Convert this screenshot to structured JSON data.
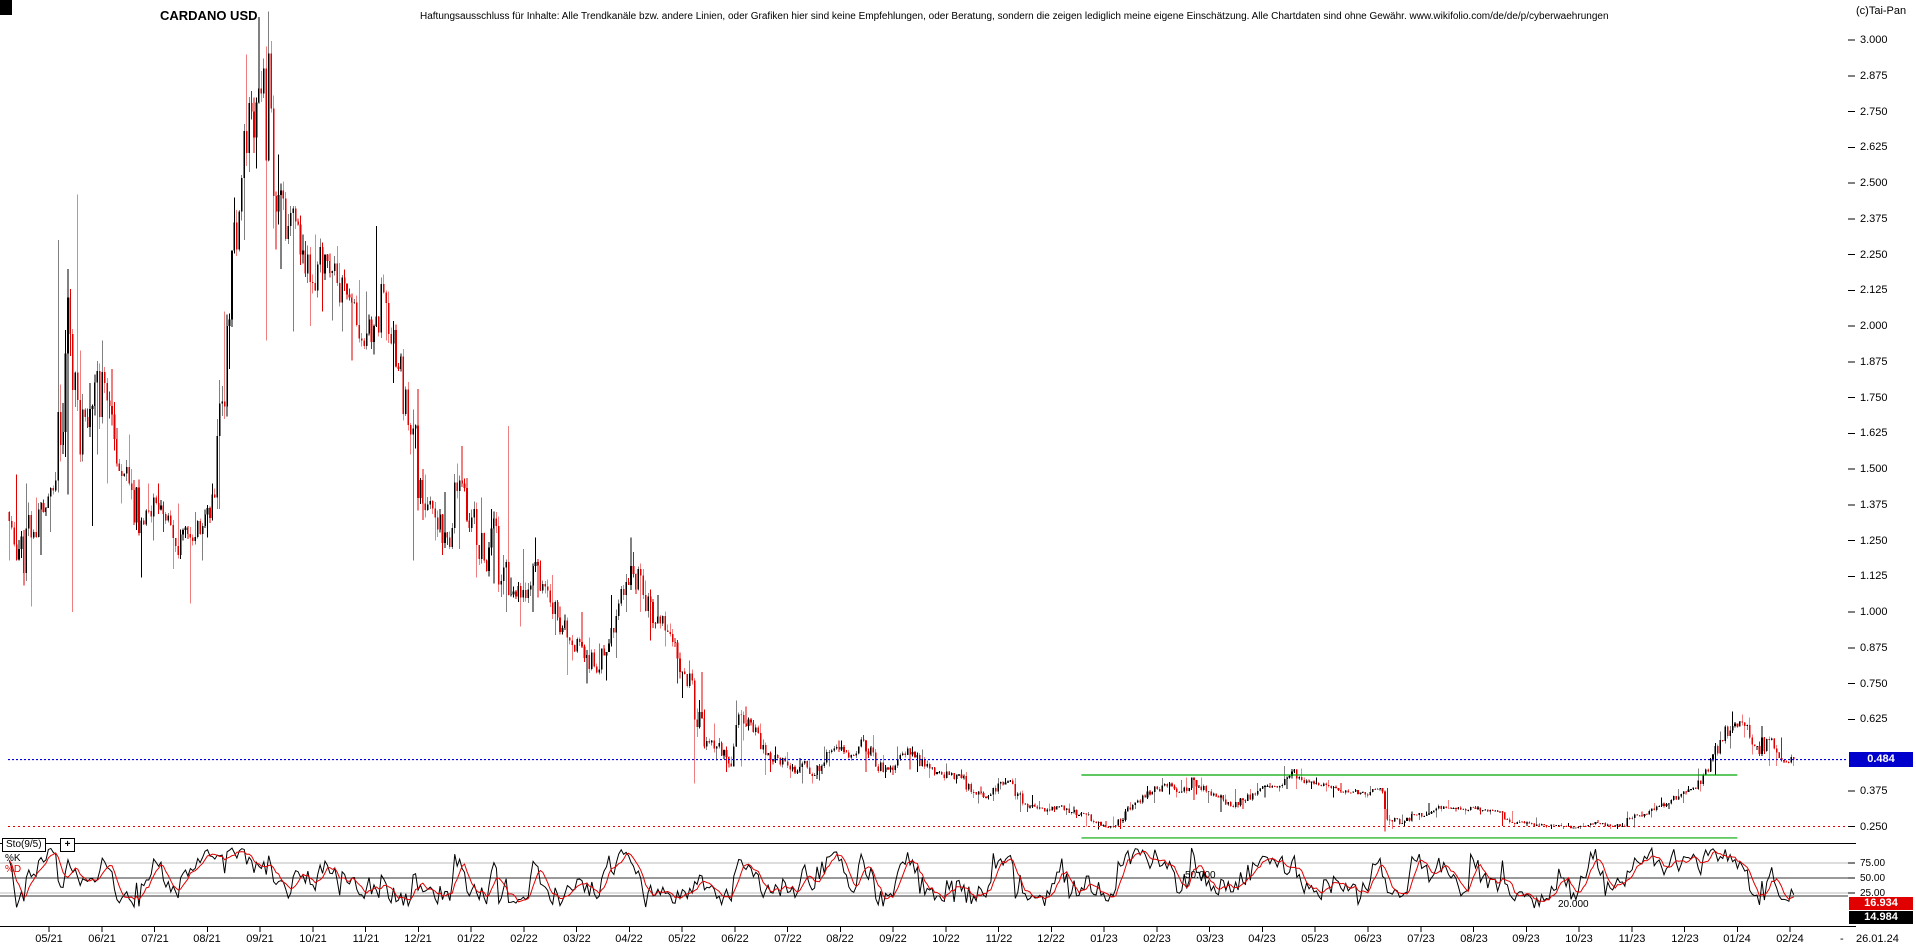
{
  "header": {
    "title": "CARDANO USD",
    "disclaimer": "Haftungsausschluss für Inhalte: Alle Trendkanäle bzw. andere Linien, oder Grafiken hier sind keine Empfehlungen, oder Beratung, sondern die zeigen lediglich meine eigene Einschätzung. Alle Chartdaten sind ohne Gewähr.  www.wikifolio.com/de/de/p/cyberwaehrungen",
    "copyright": "(c)Tai-Pan"
  },
  "price_axis": {
    "labels": [
      "3.000",
      "2.875",
      "2.750",
      "2.625",
      "2.500",
      "2.375",
      "2.250",
      "2.125",
      "2.000",
      "1.875",
      "1.750",
      "1.625",
      "1.500",
      "1.375",
      "1.250",
      "1.125",
      "1.000",
      "0.875",
      "0.750",
      "0.625",
      "0.375",
      "0.250"
    ],
    "current_price": "0.484"
  },
  "x_axis": {
    "labels": [
      "05/21",
      "06/21",
      "07/21",
      "08/21",
      "09/21",
      "10/21",
      "11/21",
      "12/21",
      "01/22",
      "02/22",
      "03/22",
      "04/22",
      "05/22",
      "06/22",
      "07/22",
      "08/22",
      "09/22",
      "10/22",
      "11/22",
      "12/22",
      "01/23",
      "02/23",
      "03/23",
      "04/23",
      "05/23",
      "06/23",
      "07/23",
      "08/23",
      "09/23",
      "10/23",
      "11/23",
      "12/23",
      "01/24",
      "02/24"
    ],
    "separator": "-",
    "end_date": "26.01.24"
  },
  "indicator": {
    "name": "Sto(9/5)",
    "add_button": "+",
    "k_label": "%K",
    "d_label": "%D",
    "level_labels": [
      "75.00",
      "50.00",
      "25.00"
    ],
    "levels": [
      75,
      50,
      25
    ],
    "mid_line_label": "50.000",
    "low_line_label": "20.000",
    "mid_line_value": 50,
    "low_line_value": 20,
    "d_value": "16.934",
    "k_value": "14.984"
  },
  "colors": {
    "up": "#000000",
    "down": "#e00000",
    "current_price_line": "#0000e6",
    "current_price_box": "#0000cd",
    "alarm_line": "#e00000",
    "support_line": "#00a800",
    "k_line": "#000000",
    "d_line": "#e00000",
    "level_line_light": "#bbbbbb",
    "level_line_dark": "#333333"
  },
  "chart_data": {
    "type": "candlestick",
    "title": "CARDANO USD",
    "ylim": [
      0.18,
      3.05
    ],
    "y_ticks": [
      3.0,
      2.875,
      2.75,
      2.625,
      2.5,
      2.375,
      2.25,
      2.125,
      2.0,
      1.875,
      1.75,
      1.625,
      1.5,
      1.375,
      1.25,
      1.125,
      1.0,
      0.875,
      0.75,
      0.625,
      0.375,
      0.25
    ],
    "months": [
      "05/21",
      "06/21",
      "07/21",
      "08/21",
      "09/21",
      "10/21",
      "11/21",
      "12/21",
      "01/22",
      "02/22",
      "03/22",
      "04/22",
      "05/22",
      "06/22",
      "07/22",
      "08/22",
      "09/22",
      "10/22",
      "11/22",
      "12/22",
      "01/23",
      "02/23",
      "03/23",
      "04/23",
      "05/23",
      "06/23",
      "07/23",
      "08/23",
      "09/23",
      "10/23",
      "11/23",
      "12/23",
      "01/24",
      "02/24"
    ],
    "current_price": 0.484,
    "lines": {
      "blue_dashed_price": 0.484,
      "red_dashed_price": 0.25,
      "green": [
        {
          "price": 0.43,
          "from_month": "12/22",
          "to_month": "01/24"
        },
        {
          "price": 0.21,
          "from_month": "12/22",
          "to_month": "01/24"
        }
      ]
    },
    "stochastic": {
      "period": 9,
      "smooth": 5,
      "last_k": 14.984,
      "last_d": 16.934
    },
    "weekly_ohlc": [
      [
        1.35,
        1.48,
        1.18,
        1.22
      ],
      [
        1.22,
        1.45,
        1.02,
        1.26
      ],
      [
        1.26,
        1.4,
        1.2,
        1.35
      ],
      [
        1.35,
        1.49,
        1.28,
        1.46
      ],
      [
        1.46,
        2.3,
        1.41,
        2.1
      ],
      [
        2.1,
        2.46,
        1.0,
        1.55
      ],
      [
        1.55,
        1.8,
        1.3,
        1.72
      ],
      [
        1.72,
        1.95,
        1.55,
        1.8
      ],
      [
        1.8,
        1.85,
        1.45,
        1.52
      ],
      [
        1.52,
        1.62,
        1.38,
        1.45
      ],
      [
        1.45,
        1.5,
        1.12,
        1.32
      ],
      [
        1.32,
        1.45,
        1.25,
        1.4
      ],
      [
        1.4,
        1.45,
        1.28,
        1.32
      ],
      [
        1.32,
        1.38,
        1.15,
        1.2
      ],
      [
        1.2,
        1.3,
        1.03,
        1.26
      ],
      [
        1.26,
        1.35,
        1.18,
        1.3
      ],
      [
        1.3,
        1.45,
        1.26,
        1.4
      ],
      [
        1.4,
        2.05,
        1.36,
        2.0
      ],
      [
        2.0,
        2.45,
        1.85,
        2.4
      ],
      [
        2.4,
        2.95,
        2.3,
        2.75
      ],
      [
        2.75,
        3.08,
        2.55,
        2.9
      ],
      [
        2.9,
        3.1,
        1.95,
        2.4
      ],
      [
        2.4,
        2.6,
        2.2,
        2.35
      ],
      [
        2.35,
        2.42,
        1.98,
        2.25
      ],
      [
        2.25,
        2.32,
        2.0,
        2.15
      ],
      [
        2.15,
        2.32,
        2.05,
        2.25
      ],
      [
        2.25,
        2.28,
        2.02,
        2.15
      ],
      [
        2.15,
        2.22,
        1.98,
        2.1
      ],
      [
        2.1,
        2.16,
        1.88,
        1.95
      ],
      [
        1.95,
        2.12,
        1.9,
        2.0
      ],
      [
        2.0,
        2.35,
        1.95,
        2.08
      ],
      [
        2.08,
        2.12,
        1.8,
        1.85
      ],
      [
        1.85,
        1.92,
        1.55,
        1.62
      ],
      [
        1.62,
        1.78,
        1.18,
        1.38
      ],
      [
        1.38,
        1.48,
        1.25,
        1.33
      ],
      [
        1.33,
        1.42,
        1.2,
        1.26
      ],
      [
        1.26,
        1.52,
        1.22,
        1.46
      ],
      [
        1.46,
        1.58,
        1.28,
        1.33
      ],
      [
        1.33,
        1.4,
        1.12,
        1.18
      ],
      [
        1.18,
        1.36,
        1.1,
        1.3
      ],
      [
        1.3,
        1.65,
        1.0,
        1.06
      ],
      [
        1.06,
        1.12,
        0.95,
        1.05
      ],
      [
        1.05,
        1.22,
        1.0,
        1.16
      ],
      [
        1.16,
        1.26,
        1.05,
        1.09
      ],
      [
        1.09,
        1.13,
        0.92,
        0.98
      ],
      [
        0.98,
        1.02,
        0.78,
        0.9
      ],
      [
        0.9,
        1.0,
        0.83,
        0.88
      ],
      [
        0.88,
        0.91,
        0.75,
        0.81
      ],
      [
        0.81,
        0.89,
        0.76,
        0.86
      ],
      [
        0.86,
        1.06,
        0.84,
        1.03
      ],
      [
        1.03,
        1.26,
        1.0,
        1.16
      ],
      [
        1.16,
        1.21,
        1.0,
        1.06
      ],
      [
        1.06,
        1.11,
        0.9,
        0.96
      ],
      [
        0.96,
        1.06,
        0.88,
        0.93
      ],
      [
        0.93,
        0.96,
        0.75,
        0.79
      ],
      [
        0.79,
        0.83,
        0.7,
        0.76
      ],
      [
        0.76,
        0.79,
        0.4,
        0.53
      ],
      [
        0.53,
        0.61,
        0.48,
        0.53
      ],
      [
        0.53,
        0.56,
        0.44,
        0.47
      ],
      [
        0.47,
        0.69,
        0.46,
        0.64
      ],
      [
        0.64,
        0.67,
        0.55,
        0.58
      ],
      [
        0.58,
        0.61,
        0.43,
        0.5
      ],
      [
        0.5,
        0.53,
        0.44,
        0.49
      ],
      [
        0.49,
        0.51,
        0.42,
        0.45
      ],
      [
        0.45,
        0.49,
        0.4,
        0.47
      ],
      [
        0.47,
        0.48,
        0.4,
        0.43
      ],
      [
        0.43,
        0.53,
        0.41,
        0.51
      ],
      [
        0.51,
        0.55,
        0.46,
        0.52
      ],
      [
        0.52,
        0.55,
        0.48,
        0.5
      ],
      [
        0.5,
        0.57,
        0.49,
        0.55
      ],
      [
        0.55,
        0.57,
        0.44,
        0.46
      ],
      [
        0.46,
        0.5,
        0.42,
        0.45
      ],
      [
        0.45,
        0.53,
        0.43,
        0.5
      ],
      [
        0.5,
        0.53,
        0.45,
        0.51
      ],
      [
        0.51,
        0.52,
        0.44,
        0.46
      ],
      [
        0.46,
        0.48,
        0.42,
        0.44
      ],
      [
        0.44,
        0.47,
        0.41,
        0.43
      ],
      [
        0.43,
        0.45,
        0.4,
        0.42
      ],
      [
        0.42,
        0.44,
        0.35,
        0.37
      ],
      [
        0.37,
        0.39,
        0.33,
        0.35
      ],
      [
        0.35,
        0.42,
        0.34,
        0.4
      ],
      [
        0.4,
        0.42,
        0.38,
        0.41
      ],
      [
        0.41,
        0.42,
        0.3,
        0.33
      ],
      [
        0.33,
        0.36,
        0.3,
        0.32
      ],
      [
        0.32,
        0.34,
        0.29,
        0.31
      ],
      [
        0.31,
        0.33,
        0.3,
        0.32
      ],
      [
        0.32,
        0.33,
        0.29,
        0.3
      ],
      [
        0.3,
        0.32,
        0.28,
        0.295
      ],
      [
        0.295,
        0.3,
        0.25,
        0.263
      ],
      [
        0.263,
        0.27,
        0.24,
        0.247
      ],
      [
        0.247,
        0.285,
        0.242,
        0.272
      ],
      [
        0.272,
        0.335,
        0.262,
        0.325
      ],
      [
        0.325,
        0.362,
        0.312,
        0.352
      ],
      [
        0.352,
        0.392,
        0.332,
        0.382
      ],
      [
        0.382,
        0.42,
        0.362,
        0.4
      ],
      [
        0.4,
        0.412,
        0.352,
        0.372
      ],
      [
        0.372,
        0.422,
        0.342,
        0.412
      ],
      [
        0.412,
        0.422,
        0.362,
        0.372
      ],
      [
        0.372,
        0.382,
        0.332,
        0.352
      ],
      [
        0.352,
        0.362,
        0.3,
        0.322
      ],
      [
        0.322,
        0.382,
        0.312,
        0.342
      ],
      [
        0.342,
        0.382,
        0.332,
        0.362
      ],
      [
        0.362,
        0.402,
        0.352,
        0.392
      ],
      [
        0.392,
        0.402,
        0.372,
        0.392
      ],
      [
        0.392,
        0.462,
        0.382,
        0.442
      ],
      [
        0.442,
        0.452,
        0.382,
        0.402
      ],
      [
        0.402,
        0.422,
        0.382,
        0.402
      ],
      [
        0.402,
        0.412,
        0.372,
        0.392
      ],
      [
        0.392,
        0.402,
        0.352,
        0.372
      ],
      [
        0.372,
        0.382,
        0.362,
        0.372
      ],
      [
        0.372,
        0.382,
        0.352,
        0.362
      ],
      [
        0.362,
        0.392,
        0.352,
        0.382
      ],
      [
        0.382,
        0.385,
        0.232,
        0.272
      ],
      [
        0.272,
        0.292,
        0.242,
        0.262
      ],
      [
        0.262,
        0.302,
        0.252,
        0.292
      ],
      [
        0.292,
        0.302,
        0.272,
        0.292
      ],
      [
        0.292,
        0.332,
        0.282,
        0.322
      ],
      [
        0.322,
        0.342,
        0.302,
        0.312
      ],
      [
        0.312,
        0.322,
        0.302,
        0.312
      ],
      [
        0.312,
        0.322,
        0.292,
        0.312
      ],
      [
        0.312,
        0.322,
        0.292,
        0.302
      ],
      [
        0.302,
        0.312,
        0.292,
        0.302
      ],
      [
        0.302,
        0.305,
        0.252,
        0.262
      ],
      [
        0.262,
        0.272,
        0.252,
        0.262
      ],
      [
        0.262,
        0.282,
        0.252,
        0.257
      ],
      [
        0.257,
        0.262,
        0.247,
        0.252
      ],
      [
        0.252,
        0.262,
        0.242,
        0.252
      ],
      [
        0.252,
        0.262,
        0.242,
        0.247
      ],
      [
        0.247,
        0.262,
        0.242,
        0.252
      ],
      [
        0.252,
        0.272,
        0.247,
        0.262
      ],
      [
        0.262,
        0.265,
        0.242,
        0.252
      ],
      [
        0.252,
        0.262,
        0.242,
        0.252
      ],
      [
        0.252,
        0.302,
        0.247,
        0.292
      ],
      [
        0.292,
        0.302,
        0.282,
        0.292
      ],
      [
        0.292,
        0.332,
        0.282,
        0.322
      ],
      [
        0.322,
        0.352,
        0.312,
        0.342
      ],
      [
        0.342,
        0.382,
        0.332,
        0.372
      ],
      [
        0.372,
        0.392,
        0.362,
        0.382
      ],
      [
        0.382,
        0.452,
        0.372,
        0.442
      ],
      [
        0.442,
        0.582,
        0.432,
        0.552
      ],
      [
        0.552,
        0.652,
        0.522,
        0.602
      ],
      [
        0.602,
        0.642,
        0.562,
        0.602
      ],
      [
        0.602,
        0.632,
        0.502,
        0.532
      ],
      [
        0.532,
        0.602,
        0.462,
        0.552
      ],
      [
        0.552,
        0.562,
        0.462,
        0.482
      ],
      [
        0.482,
        0.502,
        0.462,
        0.484
      ]
    ]
  }
}
